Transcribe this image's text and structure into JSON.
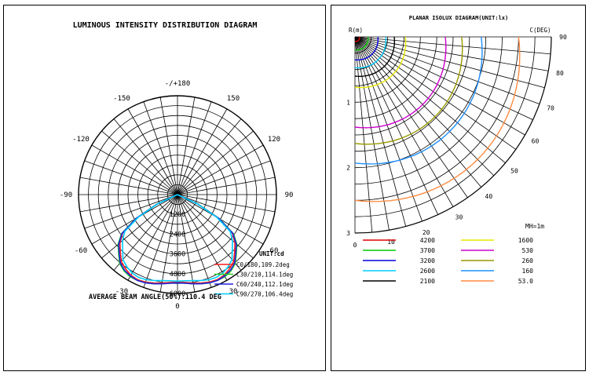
{
  "chart_data": [
    {
      "type": "polar-line",
      "title": "LUMINOUS INTENSITY DISTRIBUTION DIAGRAM",
      "angle_labels": [
        "-/+180",
        "150",
        "120",
        "90",
        "60",
        "30",
        "0",
        "-30",
        "-60",
        "-90",
        "-120",
        "-150"
      ],
      "radial_labels": [
        "0",
        "1200",
        "2400",
        "3600",
        "4800",
        "6000"
      ],
      "rlim": [
        0,
        6000
      ],
      "unit": "UNIT:cd",
      "series": [
        {
          "name": "C0/180,109.2deg",
          "color": "#ff2020",
          "r": [
            0,
            1350,
            2900,
            4050,
            4550,
            4900,
            5300,
            5500,
            5650,
            5700,
            5650,
            5550,
            5450,
            5350,
            5300
          ]
        },
        {
          "name": "C30/210,114.1deg",
          "color": "#22cc22",
          "r": [
            0,
            1400,
            2950,
            4150,
            4700,
            5050,
            5450,
            5650,
            5750,
            5750,
            5700,
            5600,
            5500,
            5400,
            5350
          ]
        },
        {
          "name": "C60/240,112.1deg",
          "color": "#2020dd",
          "r": [
            0,
            1350,
            2900,
            4100,
            4650,
            5000,
            5400,
            5600,
            5700,
            5750,
            5700,
            5600,
            5500,
            5400,
            5350
          ]
        },
        {
          "name": "C90/270,106.4deg",
          "color": "#00ccff",
          "r": [
            0,
            1300,
            2750,
            3900,
            4350,
            4700,
            5150,
            5350,
            5500,
            5550,
            5500,
            5400,
            5300,
            5250,
            5250
          ]
        }
      ],
      "theta_deg": [
        70,
        65,
        60,
        55,
        50,
        45,
        40,
        35,
        30,
        25,
        20,
        15,
        10,
        5,
        0
      ],
      "beam_angle_text": "AVERAGE BEAM ANGLE(50%):110.4 DEG"
    },
    {
      "type": "polar-isolux",
      "title": "PLANAR ISOLUX DIAGRAM(UNIT:lx)",
      "radial_axis_label": "R(m)",
      "angle_axis_label": "C(DEG)",
      "radial_ticks": [
        "1",
        "2",
        "3"
      ],
      "bottom_ticks": [
        "0",
        "10",
        "20",
        "30",
        "40",
        "50",
        "60",
        "70",
        "80",
        "90"
      ],
      "legend_title": "MH=1m",
      "rmax": 3,
      "levels": [
        {
          "label": "4200",
          "color": "#dd0000",
          "r": 0.07
        },
        {
          "label": "3700",
          "color": "#00cc00",
          "r": 0.2
        },
        {
          "label": "3200",
          "color": "#0000dd",
          "r": 0.35
        },
        {
          "label": "2600",
          "color": "#00ccff",
          "r": 0.47
        },
        {
          "label": "2100",
          "color": "#000000",
          "r": 0.6
        },
        {
          "label": "1600",
          "color": "#e8e800",
          "r": 0.77
        },
        {
          "label": "530",
          "color": "#cc00cc",
          "r": 1.38
        },
        {
          "label": "260",
          "color": "#999900",
          "r": 1.63
        },
        {
          "label": "160",
          "color": "#1e90ff",
          "r": 1.93
        },
        {
          "label": "53.0",
          "color": "#ff8c42",
          "r": 2.5
        }
      ]
    }
  ]
}
